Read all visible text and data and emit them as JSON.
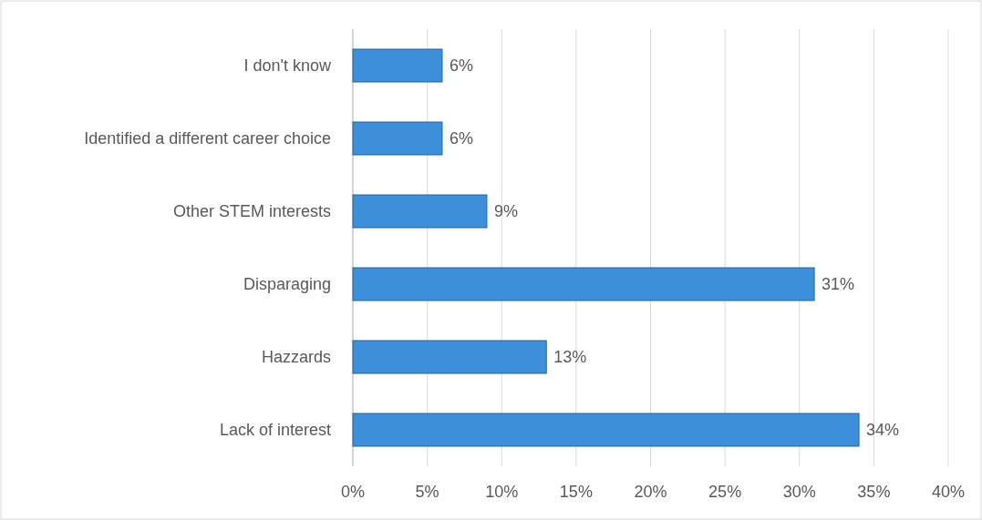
{
  "chart_data": {
    "type": "bar",
    "orientation": "horizontal",
    "categories": [
      "I don't know",
      "Identified a different career choice",
      "Other STEM interests",
      "Disparaging",
      "Hazzards",
      "Lack of interest"
    ],
    "values": [
      6,
      6,
      9,
      31,
      13,
      34
    ],
    "value_labels": [
      "6%",
      "6%",
      "9%",
      "31%",
      "13%",
      "34%"
    ],
    "color": "#3d8fd9",
    "xlim": [
      0,
      40
    ],
    "xticks": [
      {
        "value": 0,
        "label": "0%"
      },
      {
        "value": 5,
        "label": "5%"
      },
      {
        "value": 10,
        "label": "10%"
      },
      {
        "value": 15,
        "label": "15%"
      },
      {
        "value": 20,
        "label": "20%"
      },
      {
        "value": 25,
        "label": "25%"
      },
      {
        "value": 30,
        "label": "30%"
      },
      {
        "value": 35,
        "label": "35%"
      },
      {
        "value": 40,
        "label": "40%"
      }
    ],
    "grid": "x"
  }
}
